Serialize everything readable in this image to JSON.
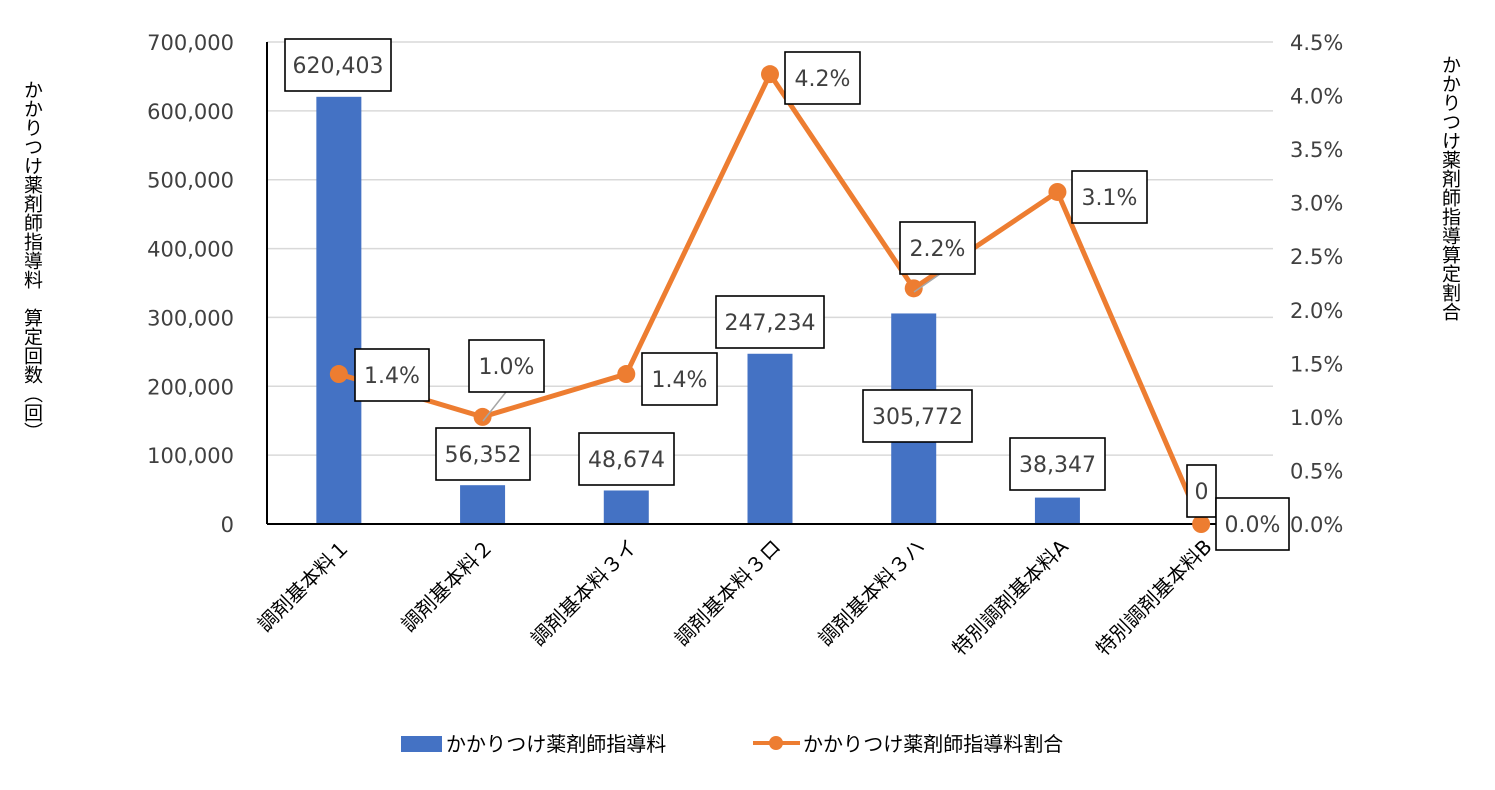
{
  "chart_data": {
    "type": "bar+line",
    "categories": [
      "調剤基本料１",
      "調剤基本料２",
      "調剤基本料３イ",
      "調剤基本料３ロ",
      "調剤基本料３ハ",
      "特別調剤基本料A",
      "特別調剤基本料B"
    ],
    "series": [
      {
        "name": "かかりつけ薬剤師指導料",
        "type": "bar",
        "axis": "left",
        "color": "#4472C4",
        "values": [
          620403,
          56352,
          48674,
          247234,
          305772,
          38347,
          0
        ],
        "labels": [
          "620,403",
          "56,352",
          "48,674",
          "247,234",
          "305,772",
          "38,347",
          "0"
        ]
      },
      {
        "name": "かかりつけ薬剤師指導料割合",
        "type": "line",
        "axis": "right",
        "color": "#ED7D31",
        "values": [
          1.4,
          1.0,
          1.4,
          4.2,
          2.2,
          3.1,
          0.0
        ],
        "labels": [
          "1.4%",
          "1.0%",
          "1.4%",
          "4.2%",
          "2.2%",
          "3.1%",
          "0.0%"
        ]
      }
    ],
    "y_left": {
      "title": "かかりつけ薬剤師指導料　算定回数（回）",
      "range": [
        0,
        700000
      ],
      "ticks": [
        0,
        100000,
        200000,
        300000,
        400000,
        500000,
        600000,
        700000
      ],
      "tick_labels": [
        "0",
        "100,000",
        "200,000",
        "300,000",
        "400,000",
        "500,000",
        "600,000",
        "700,000"
      ]
    },
    "y_right": {
      "title": "かかりつけ薬剤師指導算定割合",
      "range": [
        0,
        4.5
      ],
      "ticks": [
        0,
        0.5,
        1.0,
        1.5,
        2.0,
        2.5,
        3.0,
        3.5,
        4.0,
        4.5
      ],
      "tick_labels": [
        "0.0%",
        "0.5%",
        "1.0%",
        "1.5%",
        "2.0%",
        "2.5%",
        "3.0%",
        "3.5%",
        "4.0%",
        "4.5%"
      ]
    },
    "grid": true,
    "legend_position": "bottom",
    "title": ""
  }
}
